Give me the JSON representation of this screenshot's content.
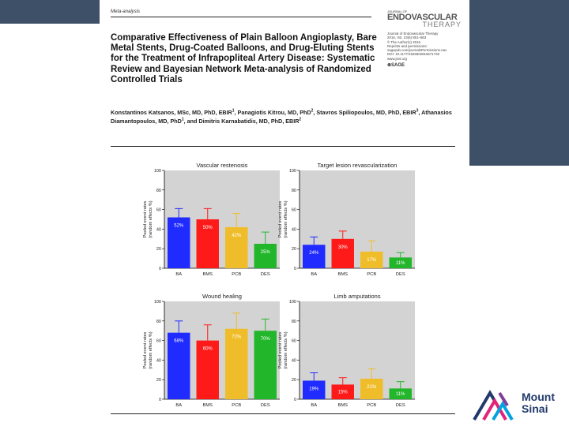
{
  "header_label": "Meta-analysis",
  "journal": {
    "line1": "JOURNAL OF",
    "name1": "ENDOVASCULAR",
    "name2": "THERAPY",
    "meta": [
      "Journal of Endovascular Therapy",
      "2016, Vol. 23(6) 851–863",
      "© The Author(s) 2016",
      "Reprints and permissions:",
      "sagepub.com/journalsPermissions.nav",
      "DOI: 10.1177/1526602816671740",
      "www.jevt.org"
    ],
    "publisher": "SAGE"
  },
  "title": "Comparative Effectiveness of Plain Balloon Angioplasty, Bare Metal Stents, Drug-Coated Balloons, and Drug-Eluting Stents for the Treatment of Infrapopliteal Artery Disease: Systematic Review and Bayesian Network Meta-analysis of Randomized Controlled Trials",
  "authors": [
    {
      "name": "Konstantinos Katsanos, MSc, MD, PhD, EBIR",
      "sup": "1"
    },
    {
      "name": "Panagiotis Kitrou, MD, PhD",
      "sup": "2"
    },
    {
      "name": "Stavros Spiliopoulos, MD, PhD, EBIR",
      "sup": "3"
    },
    {
      "name": "Athanasios Diamantopoulos, MD, PhD",
      "sup": "1"
    },
    {
      "name": "and Dimitris Karnabatidis, MD, PhD, EBIR",
      "sup": "2"
    }
  ],
  "logo": {
    "line1": "Mount",
    "line2": "Sinai"
  },
  "colors": {
    "BA": "#1f2bff",
    "BMS": "#ff1a1a",
    "PCB": "#f0bd2a",
    "DES": "#22b62a",
    "panel_bg": "#d3d3d3"
  },
  "chart_data": [
    {
      "type": "bar",
      "title": "Vascular restenosis",
      "ylabel": "Pooled event rates (random effects %)",
      "categories": [
        "BA",
        "BMS",
        "PCB",
        "DES"
      ],
      "values": [
        52,
        50,
        42,
        25
      ],
      "labels": [
        "52%",
        "50%",
        "42%",
        "25%"
      ],
      "error_upper": [
        61,
        61,
        56,
        37
      ],
      "yticks": [
        0,
        20,
        40,
        60,
        80,
        100
      ],
      "ylim": [
        0,
        100
      ]
    },
    {
      "type": "bar",
      "title": "Target lesion revascularization",
      "ylabel": "Pooled event rates (random effects %)",
      "categories": [
        "BA",
        "BMS",
        "PCB",
        "DES"
      ],
      "values": [
        24,
        30,
        17,
        11
      ],
      "labels": [
        "24%",
        "30%",
        "17%",
        "11%"
      ],
      "error_upper": [
        32,
        38,
        28,
        16
      ],
      "yticks": [
        0,
        20,
        40,
        60,
        80,
        100
      ],
      "ylim": [
        0,
        100
      ]
    },
    {
      "type": "bar",
      "title": "Wound healing",
      "ylabel": "Pooled event rates (random effects %)",
      "categories": [
        "BA",
        "BMS",
        "PCB",
        "DES"
      ],
      "values": [
        68,
        60,
        72,
        70
      ],
      "labels": [
        "68%",
        "60%",
        "72%",
        "70%"
      ],
      "error_upper": [
        80,
        76,
        88,
        82
      ],
      "yticks": [
        0,
        20,
        40,
        60,
        80,
        100
      ],
      "ylim": [
        0,
        100
      ]
    },
    {
      "type": "bar",
      "title": "Limb amputations",
      "ylabel": "Pooled event rates (random effects %)",
      "categories": [
        "BA",
        "BMS",
        "PCB",
        "DES"
      ],
      "values": [
        19,
        15,
        21,
        11
      ],
      "labels": [
        "19%",
        "15%",
        "21%",
        "11%"
      ],
      "error_upper": [
        27,
        22,
        31,
        18
      ],
      "yticks": [
        0,
        20,
        40,
        60,
        80,
        100
      ],
      "ylim": [
        0,
        100
      ]
    }
  ]
}
